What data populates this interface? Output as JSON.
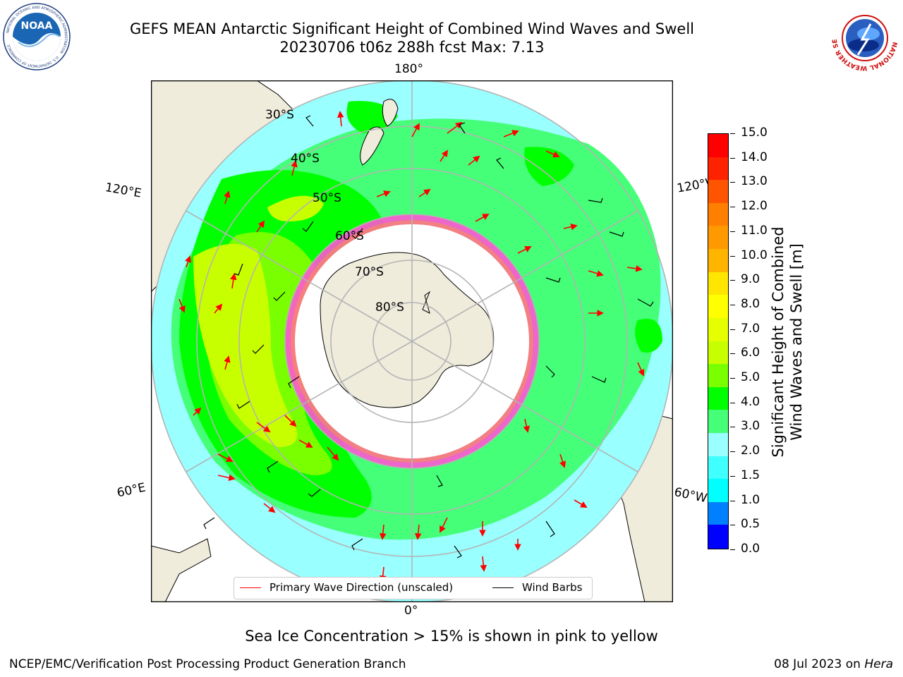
{
  "header": {
    "title_line1": "GEFS MEAN Antarctic Significant Height of Combined Wind Waves and Swell",
    "title_line2": "20230706 t06z 288h fcst   Max: 7.13"
  },
  "logos": {
    "noaa": {
      "center_text": "NOAA",
      "ring_text": "NATIONAL OCEANIC AND ATMOSPHERIC ADMINISTRATION",
      "ring_bottom": "U.S. DEPARTMENT OF COMMERCE"
    },
    "nws": {
      "ring_text": "NATIONAL WEATHER SERVICE"
    }
  },
  "map": {
    "longitude_labels": {
      "top": "180°",
      "bottom": "0°",
      "upper_left": "120°E",
      "lower_left": "60°E",
      "upper_right": "120°W",
      "lower_right": "60°W"
    },
    "latitude_labels": [
      "30°S",
      "40°S",
      "50°S",
      "60°S",
      "70°S",
      "80°S"
    ],
    "colors": {
      "land": "#efecdc",
      "ice_white": "#ffffff",
      "ice_pink": "#ff33cc",
      "ice_orange": "#ffb000",
      "grid": "#b4b4b4",
      "arrow": "#ff0000",
      "barb": "#000000"
    },
    "legend": {
      "wave_label": "Primary Wave Direction (unscaled)",
      "wind_label": "Wind Barbs"
    }
  },
  "colorbar": {
    "title_line1": "Significant Height of Combined",
    "title_line2": "Wind Waves and Swell [m]",
    "ticks": [
      "15.0",
      "14.0",
      "13.0",
      "12.0",
      "11.0",
      "10.0",
      "9.0",
      "8.0",
      "7.0",
      "6.0",
      "5.0",
      "4.0",
      "3.0",
      "2.0",
      "1.5",
      "1.0",
      "0.5",
      "0.0"
    ],
    "colors_top_down": [
      "#ff0000",
      "#ff2200",
      "#ff5500",
      "#ff7f00",
      "#ff9900",
      "#ffb400",
      "#ffe600",
      "#ffff00",
      "#e6ff00",
      "#c8ff00",
      "#7aff00",
      "#00ff00",
      "#44ff77",
      "#99ffff",
      "#40ffff",
      "#00ffff",
      "#0080ff",
      "#0000ff"
    ]
  },
  "notes": {
    "sea_ice": "Sea Ice Concentration > 15% is shown in pink to yellow"
  },
  "footer": {
    "left": "NCEP/EMC/Verification Post Processing Product Generation Branch",
    "right_prefix": "08 Jul 2023 on ",
    "right_machine": "Hera"
  }
}
